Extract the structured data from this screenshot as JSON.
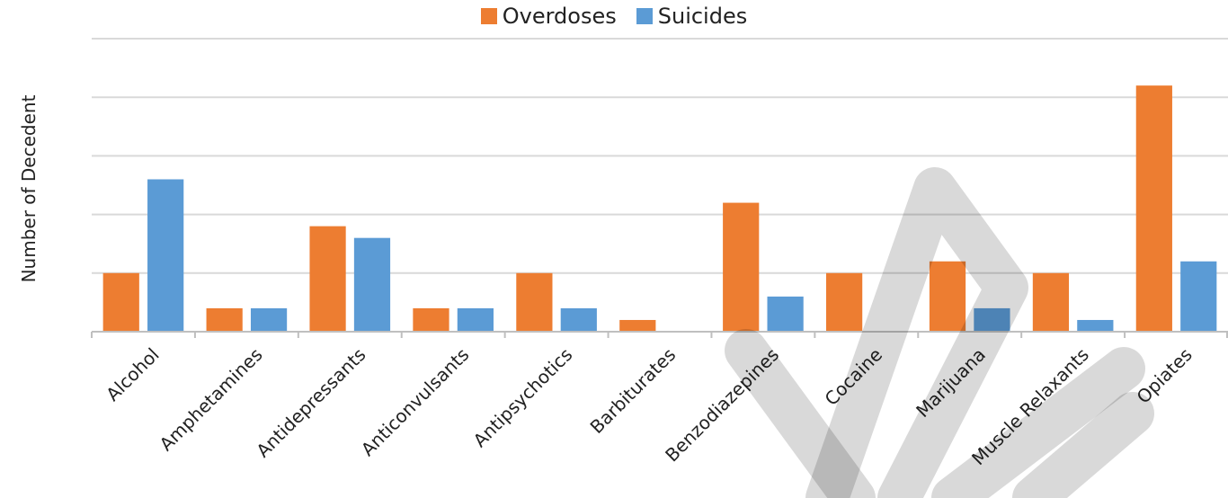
{
  "chart_data": {
    "type": "bar",
    "title": "",
    "xlabel": "",
    "ylabel": "Number of Decedent",
    "categories": [
      "Alcohol",
      "Amphetamines",
      "Antidepressants",
      "Anticonvulsants",
      "Antipsychotics",
      "Barbiturates",
      "Benzodiazepines",
      "Cocaine",
      "Marijuana",
      "Muscle Relaxants",
      "Opiates"
    ],
    "series": [
      {
        "name": "Overdoses",
        "color": "#ED7D31",
        "values": [
          5,
          2,
          9,
          2,
          5,
          1,
          11,
          5,
          6,
          5,
          21
        ]
      },
      {
        "name": "Suicides",
        "color": "#5B9BD5",
        "values": [
          13,
          2,
          8,
          2,
          2,
          0,
          3,
          0,
          2,
          1,
          6
        ]
      }
    ],
    "ylim": [
      0,
      25
    ],
    "ytick_step": 5,
    "grid": true,
    "y_tick_labels_shown": false,
    "legend_position": "top-center",
    "watermark": "DRAFT"
  }
}
